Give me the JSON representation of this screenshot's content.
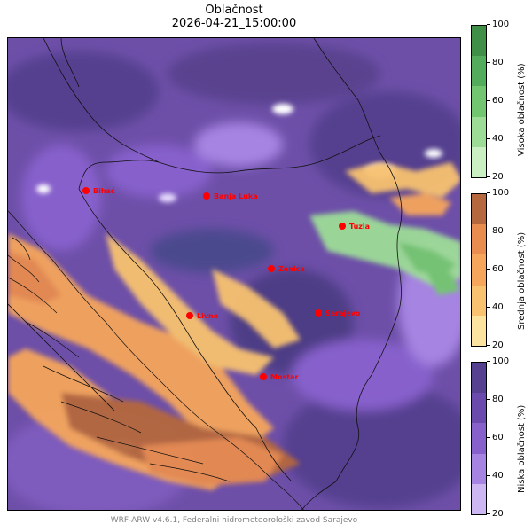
{
  "title": "Oblačnost",
  "subtitle": "2026-04-21_15:00:00",
  "credit": "WRF-ARW v4.6.1, Federalni hidrometeorološki zavod Sarajevo",
  "colorbars": [
    {
      "name": "visoka",
      "label": "Visoka oblačnost (%)",
      "ticks": [
        "100",
        "80",
        "60",
        "40",
        "20"
      ],
      "colors": [
        "#3f8f48",
        "#52ac5b",
        "#73c670",
        "#9ddc97",
        "#c9efc2"
      ]
    },
    {
      "name": "srednja",
      "label": "Srednja oblačnost (%)",
      "ticks": [
        "100",
        "80",
        "60",
        "40",
        "20"
      ],
      "colors": [
        "#b5683d",
        "#e88c4f",
        "#f5a65c",
        "#f8c270",
        "#fde3a0"
      ]
    },
    {
      "name": "niska",
      "label": "Niska oblačnost (%)",
      "ticks": [
        "100",
        "80",
        "60",
        "40",
        "20"
      ],
      "colors": [
        "#55418f",
        "#6a4aac",
        "#8760cc",
        "#a684e2",
        "#cdb7f3"
      ]
    }
  ],
  "map": {
    "background": "#6d4fa8",
    "cities": [
      {
        "name": "Bihać"
      },
      {
        "name": "Banja Luka"
      },
      {
        "name": "Tuzla"
      },
      {
        "name": "Zenica"
      },
      {
        "name": "Livno"
      },
      {
        "name": "Sarajevo"
      },
      {
        "name": "Mostar"
      }
    ]
  }
}
